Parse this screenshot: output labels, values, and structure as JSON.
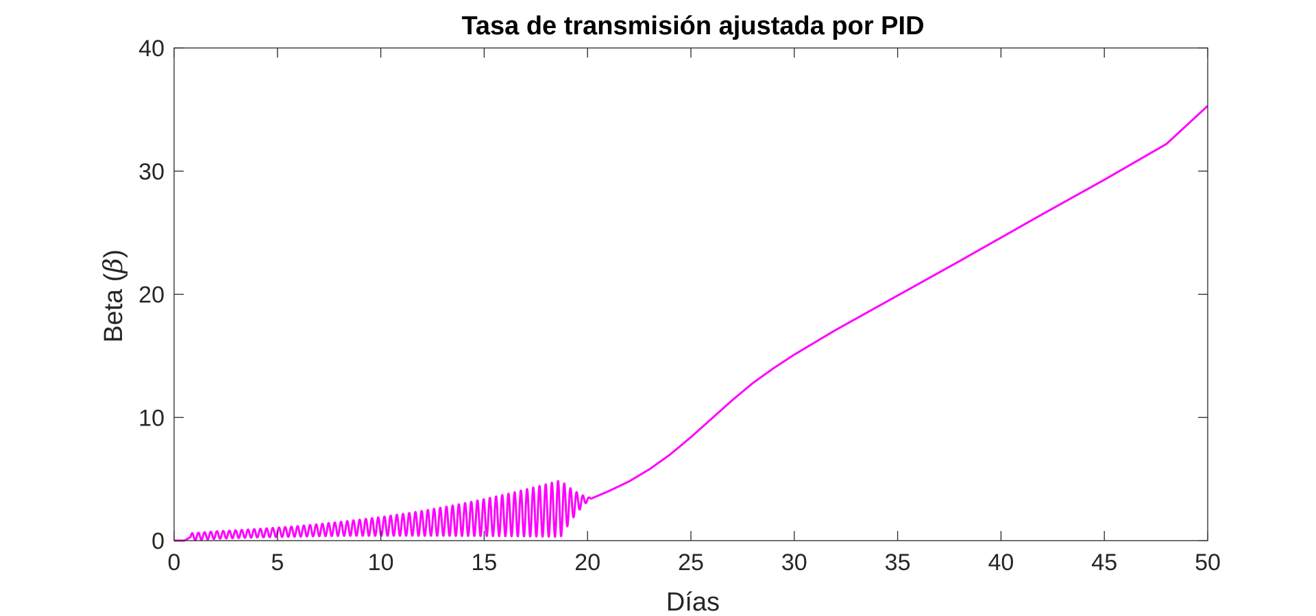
{
  "chart_data": {
    "type": "line",
    "title": "Tasa de transmisión ajustada por PID",
    "xlabel": "Días",
    "ylabel_prefix": "Beta (",
    "ylabel_symbol": "β",
    "ylabel_suffix": ")",
    "xlim": [
      0,
      50
    ],
    "ylim": [
      0,
      40
    ],
    "xticks": [
      "0",
      "5",
      "10",
      "15",
      "20",
      "25",
      "30",
      "35",
      "40",
      "45",
      "50"
    ],
    "yticks": [
      "0",
      "10",
      "20",
      "30",
      "40"
    ],
    "grid": false,
    "line_color": "#ff00ff",
    "oscillation": {
      "x_start": 0.8,
      "x_peak": 18.7,
      "x_end": 20.3,
      "period": 0.3,
      "amplitude_start": 0.3,
      "amplitude_peak": 2.3
    },
    "series": [
      {
        "x": [
          0,
          0.5,
          0.8,
          2,
          4,
          6,
          8,
          10,
          12,
          14,
          16,
          18,
          18.7,
          19.5,
          20.3,
          21,
          22,
          23,
          24,
          25,
          26,
          27,
          28,
          29,
          30,
          32,
          35,
          38,
          40,
          42,
          45,
          48,
          50
        ],
        "y": [
          0,
          0,
          0.3,
          0.45,
          0.6,
          0.75,
          0.95,
          1.15,
          1.4,
          1.7,
          2.05,
          2.45,
          2.6,
          3.1,
          3.5,
          4.0,
          4.8,
          5.8,
          7.0,
          8.4,
          9.9,
          11.4,
          12.8,
          14.0,
          15.1,
          17.1,
          19.9,
          22.7,
          24.6,
          26.5,
          29.3,
          32.2,
          35.3
        ]
      }
    ]
  }
}
